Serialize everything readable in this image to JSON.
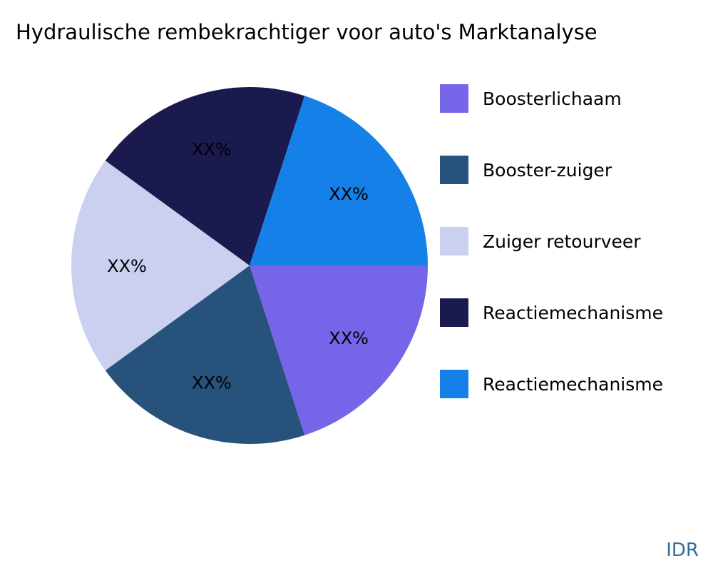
{
  "title": "Hydraulische rembekrachtiger voor auto's Marktanalyse",
  "watermark": "IDR",
  "chart_data": {
    "type": "pie",
    "title": "Hydraulische rembekrachtiger voor auto's Marktanalyse",
    "legend_position": "right",
    "direction": "clockwise",
    "start_angle_deg": 0,
    "slice_label_text": "XX%",
    "slices": [
      {
        "label": "Boosterlichaam",
        "value": 20,
        "display": "XX%",
        "color": "#7565E8"
      },
      {
        "label": "Booster-zuiger",
        "value": 20,
        "display": "XX%",
        "color": "#26527C"
      },
      {
        "label": "Zuiger retourveer",
        "value": 20,
        "display": "XX%",
        "color": "#CBD0F0"
      },
      {
        "label": "Reactiemechanisme",
        "value": 20,
        "display": "XX%",
        "color": "#1A1A4F"
      },
      {
        "label": "Reactiemechanisme",
        "value": 20,
        "display": "XX%",
        "color": "#1480E8"
      }
    ]
  }
}
